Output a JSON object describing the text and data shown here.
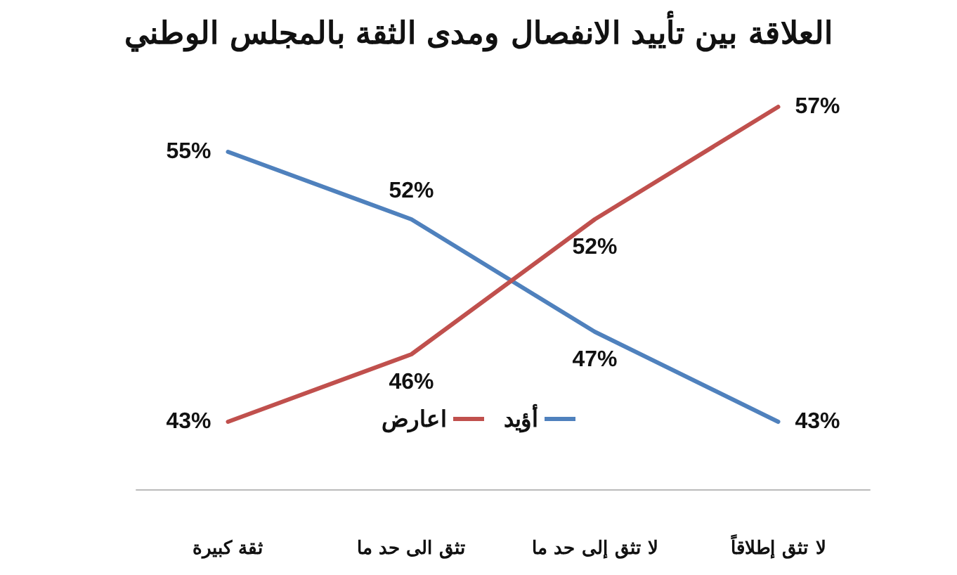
{
  "chart_data": {
    "type": "line",
    "title": "العلاقة بين تأييد الانفصال ومدى الثقة بالمجلس الوطني",
    "categories": [
      "ثقة كبيرة",
      "تثق الى حد ما",
      "لا تثق إلى حد ما",
      "لا تثق إطلاقاً"
    ],
    "series": [
      {
        "name": "أؤيد",
        "color": "#4f81bd",
        "values": [
          55,
          52,
          47,
          43
        ],
        "value_labels": [
          "55%",
          "52%",
          "47%",
          "43%"
        ]
      },
      {
        "name": "اعارض",
        "color": "#c0504d",
        "values": [
          43,
          46,
          52,
          57
        ],
        "value_labels": [
          "43%",
          "46%",
          "52%",
          "57%"
        ]
      }
    ],
    "tick_labels": "x",
    "legend": "bottom",
    "grid": false,
    "marker": "none",
    "line_style": "solid"
  }
}
